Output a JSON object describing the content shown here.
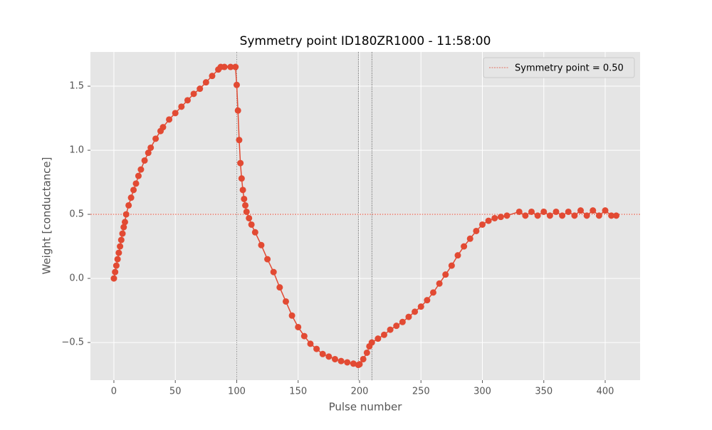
{
  "chart_data": {
    "type": "line",
    "title": "Symmetry point ID180ZR1000 - 11:58:00",
    "xlabel": "Pulse number",
    "ylabel": "Weight [conductance]",
    "x": [
      0,
      1,
      2,
      3,
      4,
      5,
      6,
      7,
      8,
      9,
      10,
      12,
      14,
      16,
      18,
      20,
      22,
      25,
      28,
      30,
      34,
      38,
      40,
      45,
      50,
      55,
      60,
      65,
      70,
      75,
      80,
      85,
      87,
      90,
      95,
      99,
      100,
      101,
      102,
      103,
      104,
      105,
      106,
      107,
      108,
      110,
      112,
      115,
      120,
      125,
      130,
      135,
      140,
      145,
      150,
      155,
      160,
      165,
      170,
      175,
      180,
      185,
      190,
      195,
      199,
      200,
      203,
      206,
      208,
      210,
      215,
      220,
      225,
      230,
      235,
      240,
      245,
      250,
      255,
      260,
      265,
      270,
      275,
      280,
      285,
      290,
      295,
      300,
      305,
      310,
      315,
      320,
      330,
      335,
      340,
      345,
      350,
      355,
      360,
      365,
      370,
      375,
      380,
      385,
      390,
      395,
      400,
      405,
      409
    ],
    "series": [
      {
        "name": "Weight",
        "color": "#E24A33",
        "values": [
          0,
          0.05,
          0.1,
          0.15,
          0.2,
          0.25,
          0.3,
          0.35,
          0.4,
          0.44,
          0.5,
          0.57,
          0.63,
          0.69,
          0.74,
          0.8,
          0.85,
          0.92,
          0.98,
          1.02,
          1.09,
          1.15,
          1.18,
          1.24,
          1.29,
          1.34,
          1.39,
          1.44,
          1.48,
          1.53,
          1.58,
          1.63,
          1.65,
          1.65,
          1.65,
          1.65,
          1.51,
          1.31,
          1.08,
          0.9,
          0.78,
          0.69,
          0.62,
          0.57,
          0.52,
          0.47,
          0.42,
          0.36,
          0.26,
          0.15,
          0.05,
          -0.07,
          -0.18,
          -0.29,
          -0.38,
          -0.45,
          -0.51,
          -0.55,
          -0.59,
          -0.61,
          -0.63,
          -0.645,
          -0.655,
          -0.665,
          -0.675,
          -0.67,
          -0.63,
          -0.58,
          -0.53,
          -0.5,
          -0.47,
          -0.44,
          -0.4,
          -0.37,
          -0.34,
          -0.3,
          -0.26,
          -0.22,
          -0.17,
          -0.11,
          -0.04,
          0.03,
          0.1,
          0.18,
          0.25,
          0.31,
          0.37,
          0.42,
          0.45,
          0.47,
          0.48,
          0.49,
          0.52,
          0.49,
          0.52,
          0.49,
          0.52,
          0.49,
          0.52,
          0.49,
          0.52,
          0.49,
          0.53,
          0.49,
          0.53,
          0.49,
          0.53,
          0.49,
          0.49
        ]
      }
    ],
    "hline": {
      "value": 0.5,
      "name": "Symmetry point = 0.50",
      "color": "#E24A33"
    },
    "vlines": [
      100,
      199,
      210
    ],
    "xlim": [
      -19.1,
      428.4
    ],
    "ylim": [
      -0.794,
      1.767
    ],
    "xticks": [
      0,
      50,
      100,
      150,
      200,
      250,
      300,
      350,
      400
    ],
    "yticks": [
      {
        "value": -0.5,
        "label": "−0.5"
      },
      {
        "value": 0,
        "label": "0.0"
      },
      {
        "value": 0.5,
        "label": "0.5"
      },
      {
        "value": 1,
        "label": "1.0"
      },
      {
        "value": 1.5,
        "label": "1.5"
      }
    ],
    "grid": true,
    "legend": "upper right"
  }
}
